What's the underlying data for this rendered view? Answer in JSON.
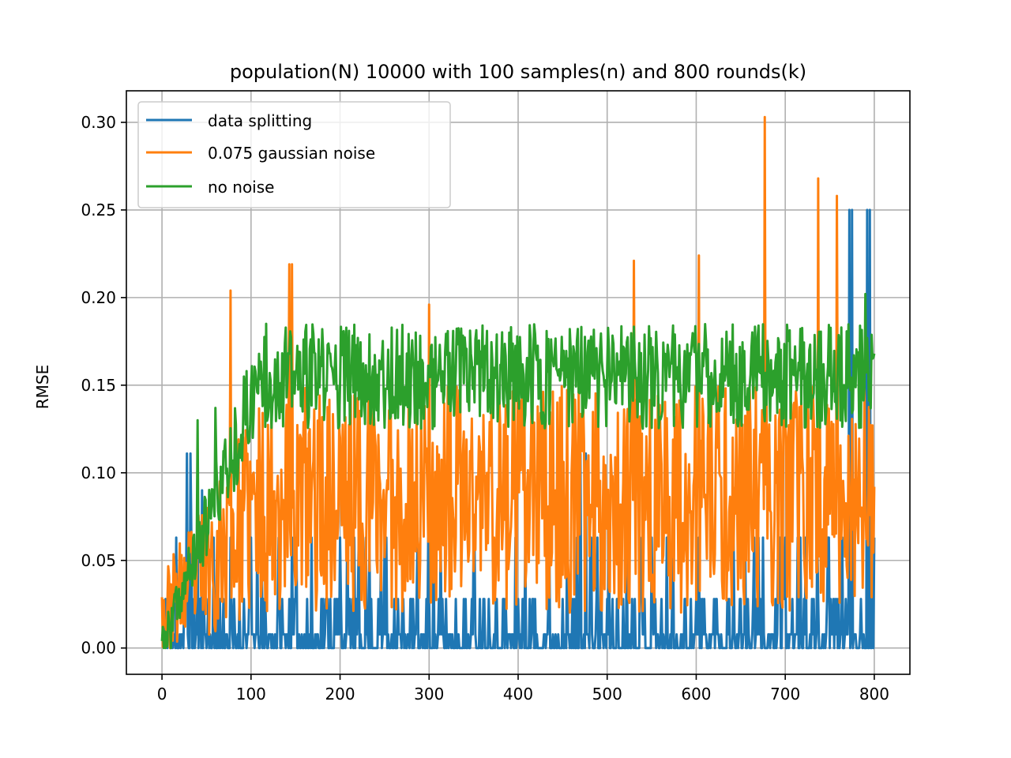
{
  "chart_data": {
    "type": "line",
    "title": "population(N) 10000 with 100 samples(n) and 800 rounds(k)",
    "xlabel": "",
    "ylabel": "RMSE",
    "xlim": [
      -40,
      840
    ],
    "ylim": [
      -0.015,
      0.318
    ],
    "x_ticks": [
      0,
      100,
      200,
      300,
      400,
      500,
      600,
      700,
      800
    ],
    "x_tick_labels": [
      "0",
      "100",
      "200",
      "300",
      "400",
      "500",
      "600",
      "700",
      "800"
    ],
    "y_ticks": [
      0.0,
      0.05,
      0.1,
      0.15,
      0.2,
      0.25,
      0.3
    ],
    "y_tick_labels": [
      "0.00",
      "0.05",
      "0.10",
      "0.15",
      "0.20",
      "0.25",
      "0.30"
    ],
    "grid": true,
    "legend_position": "top-left",
    "series": [
      {
        "name": "data splitting",
        "color": "#1f77b4",
        "generator": {
          "seed": 11,
          "levels": [
            0.0,
            0.0078,
            0.028,
            0.063
          ],
          "probs": [
            0.45,
            0.27,
            0.21,
            0.07
          ]
        },
        "x": [
          0,
          10,
          16,
          18,
          28,
          32,
          40,
          45,
          60,
          100,
          150,
          200,
          250,
          300,
          350,
          400,
          450,
          470,
          476,
          500,
          550,
          600,
          650,
          700,
          760,
          772,
          775,
          780,
          792,
          795,
          800
        ],
        "values": [
          0.007,
          0.0,
          0.063,
          0.0,
          0.111,
          0.111,
          0.07,
          0.09,
          0.028,
          0.063,
          0.028,
          0.063,
          0.063,
          0.028,
          0.063,
          0.028,
          0.028,
          0.111,
          0.111,
          0.028,
          0.063,
          0.028,
          0.028,
          0.063,
          0.028,
          0.25,
          0.25,
          0.0,
          0.25,
          0.25,
          0.063
        ]
      },
      {
        "name": "0.075 gaussian noise",
        "color": "#ff7f0e",
        "generator": {
          "seed": 23,
          "ramp_end": 120,
          "base_start": 0.02,
          "base_end": 0.085,
          "amplitude": 0.065
        },
        "x": [
          0,
          77,
          143,
          146,
          200,
          300,
          400,
          530,
          603,
          677,
          737,
          758,
          800
        ],
        "values": [
          0.029,
          0.204,
          0.219,
          0.219,
          0.12,
          0.196,
          0.168,
          0.221,
          0.224,
          0.303,
          0.268,
          0.258,
          0.092
        ]
      },
      {
        "name": "no noise",
        "color": "#2ca02c",
        "generator": {
          "seed": 37,
          "ramp_end": 110,
          "base_start": 0.0,
          "base_end": 0.155,
          "amplitude": 0.03
        },
        "x": [
          0,
          10,
          40,
          60,
          100,
          117,
          200,
          300,
          400,
          500,
          600,
          700,
          790,
          800
        ],
        "values": [
          0.004,
          0.0,
          0.13,
          0.137,
          0.15,
          0.185,
          0.15,
          0.155,
          0.165,
          0.16,
          0.165,
          0.168,
          0.202,
          0.168
        ]
      }
    ]
  }
}
